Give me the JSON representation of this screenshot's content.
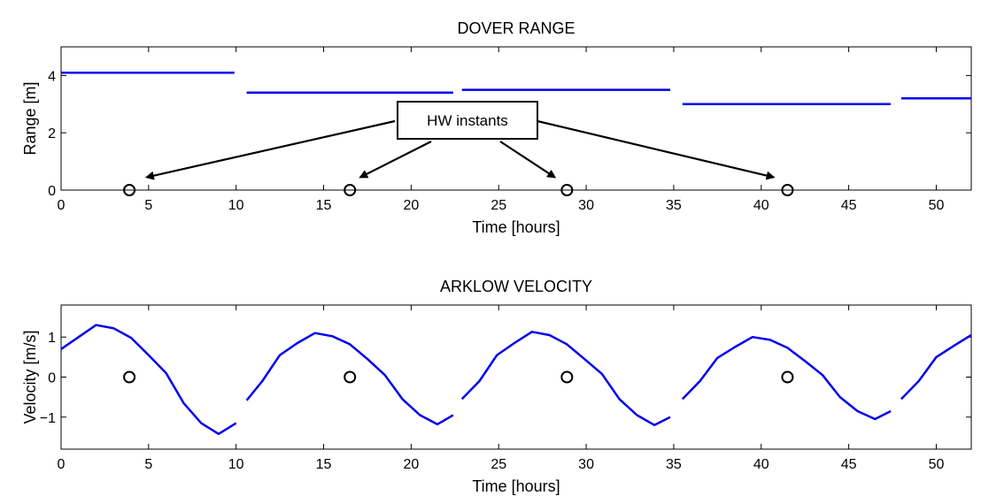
{
  "chart_data": [
    {
      "type": "line",
      "title": "DOVER RANGE",
      "xlabel": "Time [hours]",
      "ylabel": "Range [m]",
      "xlim": [
        0,
        52
      ],
      "ylim": [
        0,
        5
      ],
      "xticks": [
        0,
        5,
        10,
        15,
        20,
        25,
        30,
        35,
        40,
        45,
        50
      ],
      "yticks": [
        0,
        2,
        4
      ],
      "grid": false,
      "color": "#0000ee",
      "series": [
        {
          "x": [
            0,
            9.9
          ],
          "y": [
            4.1,
            4.1
          ]
        },
        {
          "x": [
            10.6,
            22.4
          ],
          "y": [
            3.4,
            3.4
          ]
        },
        {
          "x": [
            22.9,
            34.8
          ],
          "y": [
            3.5,
            3.5
          ]
        },
        {
          "x": [
            35.5,
            47.4
          ],
          "y": [
            3.0,
            3.0
          ]
        },
        {
          "x": [
            48.0,
            52
          ],
          "y": [
            3.2,
            3.2
          ]
        }
      ],
      "markers": {
        "x": [
          3.9,
          16.5,
          28.9,
          41.5
        ],
        "y": [
          0,
          0,
          0,
          0
        ]
      },
      "annotation": {
        "text": "HW instants",
        "targets": [
          [
            4.9,
            0.45
          ],
          [
            17.1,
            0.45
          ],
          [
            28.2,
            0.45
          ],
          [
            40.7,
            0.45
          ]
        ]
      }
    },
    {
      "type": "line",
      "title": "ARKLOW VELOCITY",
      "xlabel": "Time [hours]",
      "ylabel": "Velocity [m/s]",
      "xlim": [
        0,
        52
      ],
      "ylim": [
        -1.8,
        1.8
      ],
      "xticks": [
        0,
        5,
        10,
        15,
        20,
        25,
        30,
        35,
        40,
        45,
        50
      ],
      "yticks": [
        -1,
        0,
        1
      ],
      "grid": false,
      "color": "#0000ee",
      "series": [
        {
          "x": [
            0,
            1,
            2,
            3,
            4,
            5,
            6,
            7,
            8,
            9,
            10
          ],
          "y": [
            0.7,
            1.0,
            1.3,
            1.22,
            0.98,
            0.55,
            0.1,
            -0.65,
            -1.15,
            -1.42,
            -1.15
          ]
        },
        {
          "x": [
            10.6,
            11.5,
            12.5,
            13.5,
            14.5,
            15.5,
            16.5,
            17.5,
            18.5,
            19.5,
            20.5,
            21.5,
            22.4
          ],
          "y": [
            -0.58,
            -0.1,
            0.55,
            0.85,
            1.1,
            1.02,
            0.82,
            0.45,
            0.05,
            -0.55,
            -0.95,
            -1.18,
            -0.95
          ]
        },
        {
          "x": [
            22.9,
            23.9,
            24.9,
            25.9,
            26.9,
            27.9,
            28.9,
            29.9,
            30.9,
            31.9,
            32.9,
            33.9,
            34.8
          ],
          "y": [
            -0.55,
            -0.1,
            0.55,
            0.85,
            1.13,
            1.05,
            0.82,
            0.45,
            0.08,
            -0.55,
            -0.95,
            -1.2,
            -1.0
          ]
        },
        {
          "x": [
            35.5,
            36.5,
            37.5,
            38.5,
            39.5,
            40.5,
            41.5,
            42.5,
            43.5,
            44.5,
            45.5,
            46.5,
            47.4
          ],
          "y": [
            -0.55,
            -0.1,
            0.48,
            0.75,
            1.0,
            0.93,
            0.73,
            0.4,
            0.05,
            -0.5,
            -0.85,
            -1.05,
            -0.85
          ]
        },
        {
          "x": [
            48.0,
            49.0,
            50.0,
            51.0,
            52.0
          ],
          "y": [
            -0.55,
            -0.1,
            0.5,
            0.78,
            1.05
          ]
        }
      ],
      "markers": {
        "x": [
          3.9,
          16.5,
          28.9,
          41.5
        ],
        "y": [
          0,
          0,
          0,
          0
        ]
      }
    }
  ]
}
